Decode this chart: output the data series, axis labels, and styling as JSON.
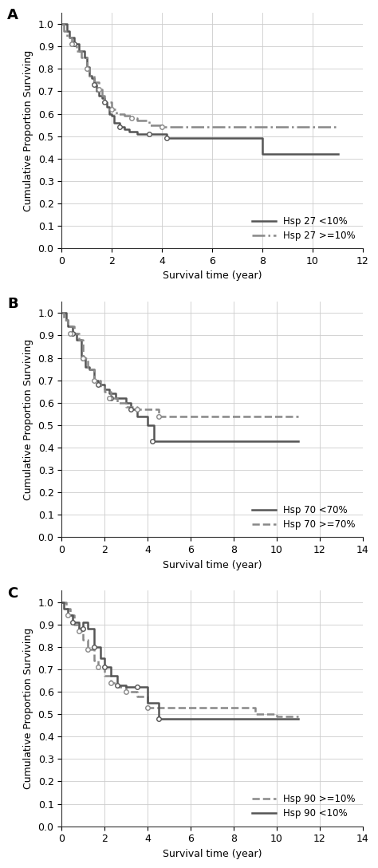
{
  "panels": [
    {
      "label": "A",
      "xlim": [
        0,
        12
      ],
      "xticks": [
        0,
        2,
        4,
        6,
        8,
        10,
        12
      ],
      "legend_labels": [
        "Hsp 27 <10%",
        "Hsp 27 >=10%"
      ],
      "line1_style": "solid",
      "line2_style": "dashdot",
      "line1_color": "#555555",
      "line2_color": "#888888",
      "line1_x": [
        0,
        0.2,
        0.3,
        0.5,
        0.7,
        0.9,
        1.0,
        1.1,
        1.2,
        1.3,
        1.4,
        1.5,
        1.6,
        1.7,
        1.8,
        1.9,
        2.0,
        2.1,
        2.3,
        2.5,
        2.7,
        3.0,
        3.5,
        4.0,
        4.2,
        4.5,
        5.0,
        6.0,
        7.0,
        7.5,
        8.0,
        9.0,
        10.0,
        11.0
      ],
      "line1_y": [
        1.0,
        0.97,
        0.94,
        0.91,
        0.88,
        0.85,
        0.81,
        0.77,
        0.76,
        0.73,
        0.7,
        0.68,
        0.67,
        0.65,
        0.63,
        0.6,
        0.59,
        0.56,
        0.54,
        0.53,
        0.52,
        0.51,
        0.51,
        0.51,
        0.49,
        0.49,
        0.49,
        0.49,
        0.49,
        0.49,
        0.42,
        0.42,
        0.42,
        0.42
      ],
      "line2_x": [
        0,
        0.1,
        0.2,
        0.4,
        0.6,
        0.8,
        1.0,
        1.1,
        1.3,
        1.5,
        1.6,
        1.7,
        2.0,
        2.2,
        2.5,
        2.8,
        3.0,
        3.5,
        4.0,
        4.3,
        5.0,
        6.0,
        7.0,
        8.0,
        9.0,
        10.0,
        11.0
      ],
      "line2_y": [
        1.0,
        0.97,
        0.94,
        0.91,
        0.88,
        0.85,
        0.8,
        0.77,
        0.74,
        0.71,
        0.68,
        0.65,
        0.62,
        0.6,
        0.59,
        0.58,
        0.57,
        0.55,
        0.54,
        0.54,
        0.54,
        0.54,
        0.54,
        0.54,
        0.54,
        0.54,
        0.54
      ],
      "censored1_x": [
        0.5,
        1.3,
        1.7,
        2.3,
        3.5,
        4.2
      ],
      "censored1_y": [
        0.91,
        0.73,
        0.65,
        0.54,
        0.51,
        0.49
      ],
      "censored2_x": [
        0.4,
        1.0,
        1.5,
        2.0,
        2.8,
        4.0
      ],
      "censored2_y": [
        0.91,
        0.8,
        0.71,
        0.62,
        0.58,
        0.54
      ]
    },
    {
      "label": "B",
      "xlim": [
        0,
        14
      ],
      "xticks": [
        0,
        2,
        4,
        6,
        8,
        10,
        12,
        14
      ],
      "legend_labels": [
        "Hsp 70 <70%",
        "Hsp 70 >=70%"
      ],
      "line1_style": "solid",
      "line2_style": "dashed",
      "line1_color": "#555555",
      "line2_color": "#888888",
      "line1_x": [
        0,
        0.2,
        0.3,
        0.5,
        0.7,
        0.9,
        1.0,
        1.1,
        1.3,
        1.5,
        1.7,
        2.0,
        2.2,
        2.5,
        3.0,
        3.2,
        3.5,
        4.0,
        4.3,
        4.5,
        5.0,
        6.0,
        7.0,
        8.0,
        9.0,
        10.0,
        11.0
      ],
      "line1_y": [
        1.0,
        0.97,
        0.94,
        0.91,
        0.88,
        0.81,
        0.8,
        0.76,
        0.75,
        0.7,
        0.68,
        0.66,
        0.64,
        0.62,
        0.6,
        0.57,
        0.54,
        0.5,
        0.43,
        0.43,
        0.43,
        0.43,
        0.43,
        0.43,
        0.43,
        0.43,
        0.43
      ],
      "line2_x": [
        0,
        0.1,
        0.3,
        0.6,
        0.8,
        1.0,
        1.2,
        1.5,
        1.8,
        2.0,
        2.3,
        2.6,
        3.0,
        3.5,
        4.0,
        4.5,
        5.0,
        5.5,
        6.0,
        7.0,
        8.0,
        9.0,
        10.0,
        11.0
      ],
      "line2_y": [
        1.0,
        0.97,
        0.94,
        0.91,
        0.88,
        0.8,
        0.75,
        0.7,
        0.67,
        0.65,
        0.62,
        0.6,
        0.58,
        0.57,
        0.57,
        0.54,
        0.54,
        0.54,
        0.54,
        0.54,
        0.54,
        0.54,
        0.54,
        0.54
      ],
      "censored1_x": [
        0.5,
        1.0,
        1.7,
        2.3,
        3.2,
        4.2
      ],
      "censored1_y": [
        0.91,
        0.8,
        0.68,
        0.62,
        0.57,
        0.43
      ],
      "censored2_x": [
        0.4,
        1.0,
        1.5,
        2.2,
        3.5,
        4.5
      ],
      "censored2_y": [
        0.91,
        0.8,
        0.7,
        0.62,
        0.57,
        0.54
      ]
    },
    {
      "label": "C",
      "xlim": [
        0,
        14
      ],
      "xticks": [
        0,
        2,
        4,
        6,
        8,
        10,
        12,
        14
      ],
      "legend_labels": [
        "Hsp 90 >=10%",
        "Hsp 90 <10%"
      ],
      "line1_style": "dashed",
      "line2_style": "solid",
      "line1_color": "#888888",
      "line2_color": "#555555",
      "line1_x": [
        0,
        0.2,
        0.4,
        0.6,
        0.8,
        1.0,
        1.2,
        1.5,
        1.7,
        2.0,
        2.3,
        2.6,
        3.0,
        3.5,
        4.0,
        4.3,
        4.5,
        5.0,
        6.0,
        7.0,
        7.5,
        8.0,
        9.0,
        10.0,
        11.0
      ],
      "line1_y": [
        1.0,
        0.97,
        0.94,
        0.9,
        0.87,
        0.83,
        0.79,
        0.74,
        0.71,
        0.67,
        0.64,
        0.62,
        0.6,
        0.58,
        0.53,
        0.53,
        0.53,
        0.53,
        0.53,
        0.53,
        0.53,
        0.53,
        0.5,
        0.49,
        0.49
      ],
      "line2_x": [
        0,
        0.1,
        0.3,
        0.5,
        0.8,
        1.0,
        1.2,
        1.5,
        1.8,
        2.0,
        2.3,
        2.6,
        3.0,
        3.5,
        4.0,
        4.5,
        5.0,
        6.0,
        7.0,
        7.5,
        8.0,
        9.0,
        10.0,
        11.0
      ],
      "line2_y": [
        1.0,
        0.97,
        0.94,
        0.91,
        0.88,
        0.91,
        0.88,
        0.8,
        0.75,
        0.71,
        0.67,
        0.63,
        0.62,
        0.62,
        0.55,
        0.48,
        0.48,
        0.48,
        0.48,
        0.48,
        0.48,
        0.48,
        0.48,
        0.48
      ],
      "censored1_x": [
        0.3,
        0.8,
        1.2,
        1.7,
        2.3,
        3.0,
        4.0
      ],
      "censored1_y": [
        0.94,
        0.87,
        0.79,
        0.71,
        0.64,
        0.6,
        0.53
      ],
      "censored2_x": [
        0.5,
        1.0,
        1.5,
        2.0,
        2.6,
        3.5,
        4.5
      ],
      "censored2_y": [
        0.91,
        0.88,
        0.8,
        0.71,
        0.63,
        0.62,
        0.48
      ]
    }
  ],
  "ylabel": "Cumulative Proportion Surviving",
  "xlabel": "Survival time (year)",
  "yticks": [
    0.0,
    0.1,
    0.2,
    0.3,
    0.4,
    0.5,
    0.6,
    0.7,
    0.8,
    0.9,
    1.0
  ],
  "ylim": [
    0.0,
    1.05
  ],
  "bg_color": "#ffffff",
  "grid_color": "#cccccc",
  "line_lw": 1.8
}
